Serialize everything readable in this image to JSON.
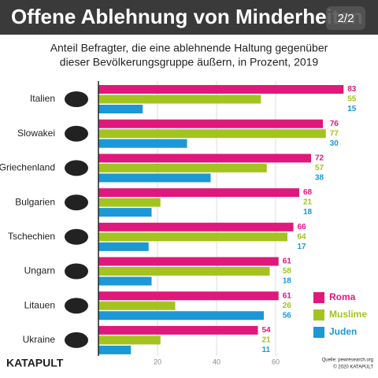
{
  "chart_data": {
    "type": "bar",
    "orientation": "horizontal",
    "title": "Offene Ablehnung von Minderheiten",
    "page_indicator": "2/2",
    "subtitle": [
      "Anteil Befragter, die eine ablehnende Haltung gegenüber",
      "dieser Bevölkerungsgruppe äußern, in Prozent, 2019"
    ],
    "categories": [
      "Italien",
      "Slowakei",
      "Griechenland",
      "Bulgarien",
      "Tschechien",
      "Ungarn",
      "Litauen",
      "Ukraine"
    ],
    "series": [
      {
        "name": "Roma",
        "color": "#e0187c",
        "values": [
          83,
          76,
          72,
          68,
          66,
          61,
          61,
          54
        ]
      },
      {
        "name": "Muslime",
        "color": "#a3c41f",
        "values": [
          55,
          77,
          57,
          21,
          64,
          58,
          26,
          21
        ]
      },
      {
        "name": "Juden",
        "color": "#1b98d5",
        "values": [
          15,
          30,
          38,
          18,
          17,
          18,
          56,
          11
        ]
      }
    ],
    "xlim": [
      0,
      84
    ],
    "xticks": [
      20,
      40,
      60
    ],
    "grid": true,
    "legend": "lower right",
    "brand": "KATAPULT",
    "source": "Quelle: pewresearch.org",
    "copyright": "© 2020 KATAPULT"
  }
}
